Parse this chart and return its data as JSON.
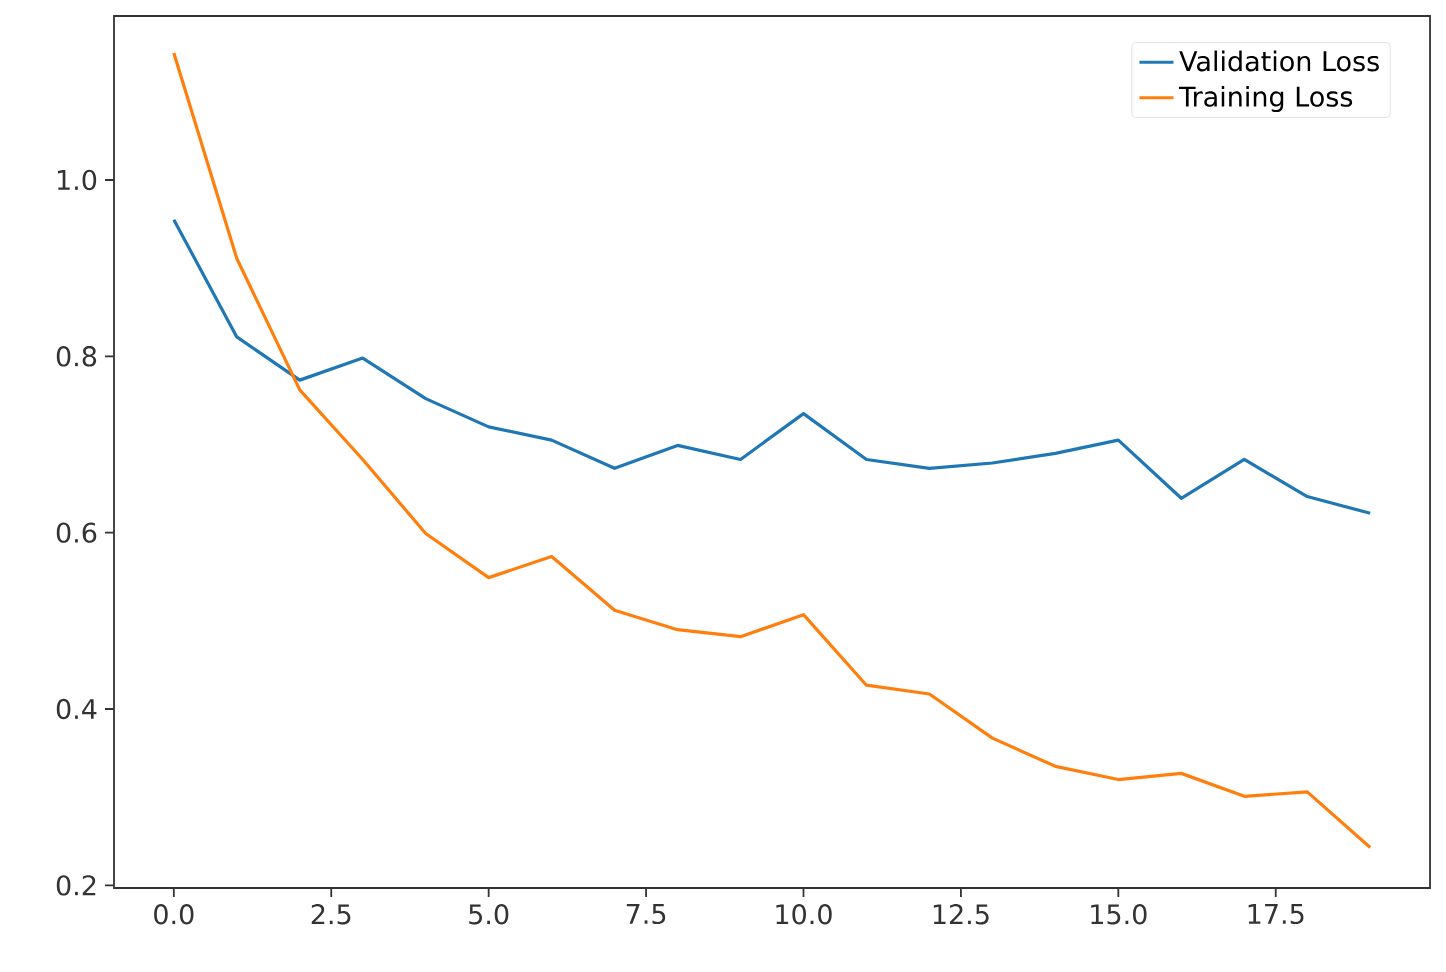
{
  "chart_data": {
    "type": "line",
    "x": [
      0,
      1,
      2,
      3,
      4,
      5,
      6,
      7,
      8,
      9,
      10,
      11,
      12,
      13,
      14,
      15,
      16,
      17,
      18,
      19
    ],
    "series": [
      {
        "name": "Validation Loss",
        "color": "#1f77b4",
        "values": [
          0.955,
          0.822,
          0.773,
          0.798,
          0.752,
          0.72,
          0.705,
          0.673,
          0.699,
          0.683,
          0.735,
          0.683,
          0.673,
          0.679,
          0.69,
          0.705,
          0.639,
          0.683,
          0.641,
          0.622
        ]
      },
      {
        "name": "Training Loss",
        "color": "#ff7f0e",
        "values": [
          1.144,
          0.911,
          0.762,
          0.683,
          0.599,
          0.549,
          0.573,
          0.512,
          0.49,
          0.482,
          0.507,
          0.427,
          0.417,
          0.367,
          0.335,
          0.32,
          0.327,
          0.301,
          0.306,
          0.243
        ]
      }
    ],
    "xlim": [
      -0.95,
      19.95
    ],
    "ylim": [
      0.197,
      1.186
    ],
    "xticks": [
      {
        "value": 0,
        "label": "0.0"
      },
      {
        "value": 2.5,
        "label": "2.5"
      },
      {
        "value": 5,
        "label": "5.0"
      },
      {
        "value": 7.5,
        "label": "7.5"
      },
      {
        "value": 10,
        "label": "10.0"
      },
      {
        "value": 12.5,
        "label": "12.5"
      },
      {
        "value": 15,
        "label": "15.0"
      },
      {
        "value": 17.5,
        "label": "17.5"
      }
    ],
    "yticks": [
      0.2,
      0.4,
      0.6,
      0.8,
      {
        "value": 1,
        "label": "1.0"
      }
    ],
    "legend": "top right"
  }
}
